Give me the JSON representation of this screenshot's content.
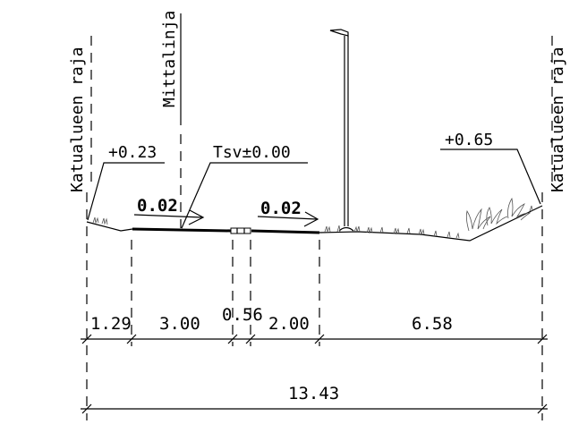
{
  "labels": {
    "boundary_left": "Katualueen raja",
    "boundary_right": "Katualueen raja",
    "measure_line": "Mittalinja",
    "elev_left": "+0.23",
    "elev_center": "Tsv±0.00",
    "elev_right": "+0.65",
    "slope_1": "0.02",
    "slope_2": "0.02"
  },
  "dimensions": {
    "seg_1": "1.29",
    "seg_2": "3.00",
    "seg_3": "0.56",
    "seg_4": "2.00",
    "seg_5": "6.58",
    "total": "13.43"
  }
}
